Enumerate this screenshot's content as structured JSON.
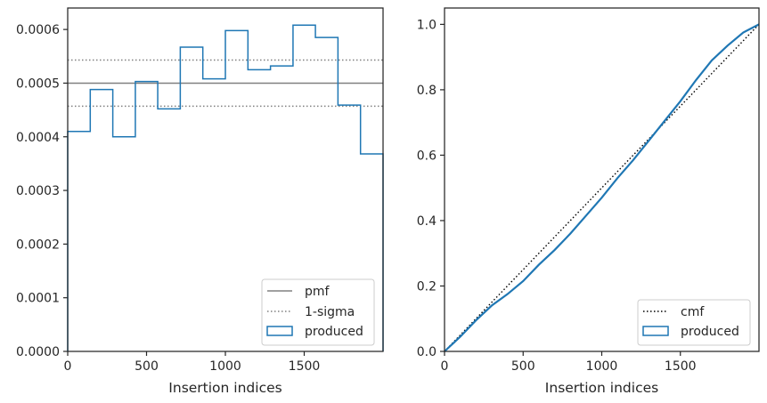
{
  "chart_data": [
    {
      "type": "histogram",
      "xlabel": "Insertion indices",
      "ylabel": "",
      "xlim": [
        0,
        2000
      ],
      "ylim": [
        0,
        0.00064
      ],
      "x_ticks": [
        0,
        500,
        1000,
        1500
      ],
      "x_tick_labels": [
        "0",
        "500",
        "1000",
        "1500"
      ],
      "y_ticks": [
        0,
        0.0001,
        0.0002,
        0.0003,
        0.0004,
        0.0005,
        0.0006
      ],
      "y_tick_labels": [
        "0.0000",
        "0.0001",
        "0.0002",
        "0.0003",
        "0.0004",
        "0.0005",
        "0.0006"
      ],
      "grid": false,
      "legend_position": "lower right",
      "bin_edges": [
        0,
        143,
        286,
        429,
        571,
        714,
        857,
        1000,
        1143,
        1286,
        1429,
        1571,
        1714,
        1857,
        2000
      ],
      "series": [
        {
          "name": "produced",
          "kind": "step",
          "color": "#1f77b4",
          "values": [
            0.00041,
            0.000488,
            0.0004,
            0.000503,
            0.000452,
            0.000567,
            0.000508,
            0.000598,
            0.000525,
            0.000532,
            0.000608,
            0.000585,
            0.000459,
            0.000368
          ]
        },
        {
          "name": "pmf",
          "kind": "hline",
          "color": "#808080",
          "style": "solid",
          "value": 0.0005
        },
        {
          "name": "1-sigma",
          "kind": "hline",
          "color": "#808080",
          "style": "dotted",
          "values": [
            0.000457,
            0.000543
          ]
        }
      ],
      "legend": [
        {
          "label": "pmf",
          "kind": "solid-line"
        },
        {
          "label": "1-sigma",
          "kind": "dotted-line"
        },
        {
          "label": "produced",
          "kind": "box"
        }
      ]
    },
    {
      "type": "line",
      "xlabel": "Insertion indices",
      "ylabel": "",
      "xlim": [
        0,
        2000
      ],
      "ylim": [
        0,
        1.05
      ],
      "x_ticks": [
        0,
        500,
        1000,
        1500
      ],
      "x_tick_labels": [
        "0",
        "500",
        "1000",
        "1500"
      ],
      "y_ticks": [
        0,
        0.2,
        0.4,
        0.6,
        0.8,
        1.0
      ],
      "y_tick_labels": [
        "0.0",
        "0.2",
        "0.4",
        "0.6",
        "0.8",
        "1.0"
      ],
      "grid": false,
      "legend_position": "lower right",
      "series": [
        {
          "name": "cmf",
          "color": "#000000",
          "style": "dotted",
          "x": [
            0,
            2000
          ],
          "y": [
            0,
            1.0
          ]
        },
        {
          "name": "produced",
          "color": "#1f77b4",
          "style": "solid",
          "x": [
            0,
            100,
            200,
            300,
            400,
            500,
            600,
            700,
            800,
            900,
            1000,
            1100,
            1200,
            1300,
            1400,
            1500,
            1600,
            1700,
            1800,
            1900,
            2000
          ],
          "y": [
            0,
            0.045,
            0.095,
            0.14,
            0.175,
            0.215,
            0.265,
            0.31,
            0.36,
            0.415,
            0.47,
            0.53,
            0.585,
            0.645,
            0.705,
            0.765,
            0.83,
            0.89,
            0.935,
            0.975,
            1.0
          ]
        }
      ],
      "legend": [
        {
          "label": "cmf",
          "kind": "dotted-line"
        },
        {
          "label": "produced",
          "kind": "box"
        }
      ]
    }
  ]
}
